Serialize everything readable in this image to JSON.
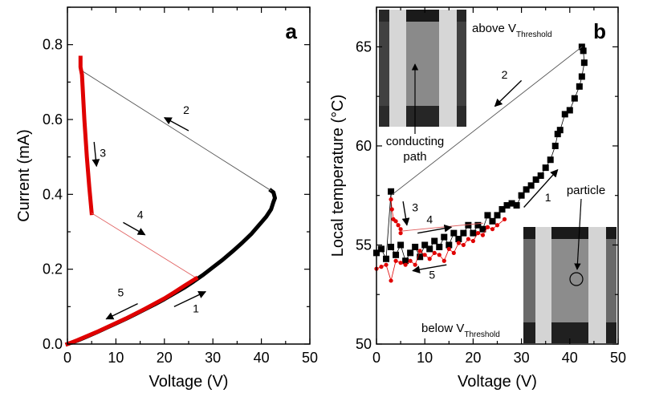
{
  "chart_data": [
    {
      "type": "line",
      "panel_label": "a",
      "xlabel": "Voltage (V)",
      "ylabel": "Current (mA)",
      "xlim": [
        0,
        50
      ],
      "ylim": [
        0,
        0.9
      ],
      "xticks": [
        "0",
        "10",
        "20",
        "30",
        "40",
        "50"
      ],
      "yticks": [
        "0.0",
        "0.2",
        "0.4",
        "0.6",
        "0.8"
      ],
      "grid": false,
      "series": [
        {
          "color": "#000000",
          "style": "thick",
          "x": [
            0,
            2,
            4,
            6,
            8,
            10,
            12,
            14,
            16,
            18,
            20,
            22,
            24,
            26,
            28,
            30,
            32,
            34,
            36,
            38,
            40,
            41,
            42,
            42.5,
            42.8,
            42.5,
            42
          ],
          "y": [
            0,
            0.009,
            0.02,
            0.031,
            0.043,
            0.055,
            0.067,
            0.08,
            0.093,
            0.106,
            0.12,
            0.135,
            0.15,
            0.167,
            0.185,
            0.205,
            0.225,
            0.247,
            0.27,
            0.295,
            0.325,
            0.34,
            0.36,
            0.38,
            0.39,
            0.405,
            0.41
          ]
        },
        {
          "color": "#555555",
          "style": "thin",
          "x": [
            42,
            3
          ],
          "y": [
            0.41,
            0.73
          ]
        },
        {
          "color": "#e00000",
          "style": "thick",
          "x": [
            2.7,
            2.7,
            3,
            3.5,
            4,
            4.5,
            5
          ],
          "y": [
            0.765,
            0.74,
            0.72,
            0.6,
            0.5,
            0.42,
            0.35
          ]
        },
        {
          "color": "#e06060",
          "style": "thin",
          "x": [
            5,
            26.5
          ],
          "y": [
            0.35,
            0.177
          ]
        },
        {
          "color": "#e00000",
          "style": "thick",
          "x": [
            26.5,
            24,
            22,
            20,
            18,
            16,
            14,
            12,
            10,
            8,
            6,
            4,
            2,
            0
          ],
          "y": [
            0.175,
            0.155,
            0.138,
            0.122,
            0.108,
            0.094,
            0.081,
            0.068,
            0.056,
            0.044,
            0.032,
            0.021,
            0.01,
            0
          ]
        }
      ],
      "annotations": [
        "1",
        "2",
        "3",
        "4",
        "5"
      ]
    },
    {
      "type": "scatter",
      "panel_label": "b",
      "xlabel": "Voltage (V)",
      "ylabel": "Local temperature (°C)",
      "xlim": [
        0,
        50
      ],
      "ylim": [
        50,
        67
      ],
      "xticks": [
        "0",
        "10",
        "20",
        "30",
        "40",
        "50"
      ],
      "yticks": [
        "50",
        "55",
        "60",
        "65"
      ],
      "grid": false,
      "series": [
        {
          "color": "#000000",
          "marker": "square",
          "x": [
            0,
            1,
            2,
            3,
            3,
            4,
            5,
            6,
            7,
            8,
            9,
            10,
            11,
            12,
            13,
            14,
            15,
            16,
            17,
            18,
            19,
            20,
            21,
            22,
            23,
            24,
            25,
            26,
            27,
            28,
            29,
            30,
            31,
            32,
            33,
            34,
            35,
            36,
            37,
            37.5,
            38,
            39,
            40,
            41,
            42,
            42.5,
            43,
            42.8,
            42.5
          ],
          "y": [
            54.6,
            54.8,
            54.3,
            57.7,
            54.9,
            54.5,
            55.0,
            54.2,
            54.6,
            54.9,
            54.4,
            55.0,
            54.8,
            55.2,
            54.9,
            55.4,
            55.0,
            55.6,
            55.3,
            55.6,
            56.0,
            55.6,
            56.0,
            55.8,
            56.5,
            56.2,
            56.5,
            56.8,
            57.0,
            57.1,
            57.0,
            57.5,
            57.8,
            58.0,
            58.3,
            58.5,
            58.9,
            59.3,
            60.0,
            60.6,
            60.8,
            61.6,
            61.8,
            62.4,
            63.0,
            63.5,
            64.2,
            64.8,
            65.0
          ]
        },
        {
          "color": "#555555",
          "style": "thin",
          "x": [
            42.5,
            3
          ],
          "y": [
            65.0,
            57.5
          ]
        },
        {
          "color": "#e00000",
          "marker": "circle",
          "x": [
            3,
            3.2,
            3.5,
            4,
            4.5,
            5,
            5
          ],
          "y": [
            57.3,
            56.8,
            56.3,
            56.2,
            56.0,
            55.8,
            55.6
          ]
        },
        {
          "color": "#e06060",
          "style": "thin",
          "x": [
            5,
            22
          ],
          "y": [
            55.7,
            56.1
          ]
        },
        {
          "color": "#e00000",
          "marker": "circle",
          "x": [
            26.5,
            25,
            24,
            23,
            22,
            21,
            20,
            19,
            18,
            17,
            16,
            15,
            14,
            13,
            12,
            11,
            10,
            9,
            8,
            7,
            6,
            5,
            4,
            3,
            2,
            1,
            0
          ],
          "y": [
            56.3,
            56.0,
            55.8,
            55.9,
            55.5,
            55.6,
            55.2,
            55.3,
            55.0,
            55.1,
            54.6,
            54.8,
            54.2,
            54.5,
            54.6,
            54.3,
            54.5,
            54.7,
            54.0,
            54.2,
            54.0,
            54.1,
            54.2,
            53.2,
            54.0,
            53.9,
            53.8
          ]
        }
      ],
      "annotations": [
        "1",
        "2",
        "3",
        "4",
        "5"
      ],
      "insets": {
        "above": {
          "text": "above V",
          "sub": "Threshold",
          "pointer": "conducting path",
          "pointer_line1": "conducting",
          "pointer_line2": "path"
        },
        "below": {
          "text": "below V",
          "sub": "Threshold",
          "pointer": "particle"
        }
      }
    }
  ]
}
